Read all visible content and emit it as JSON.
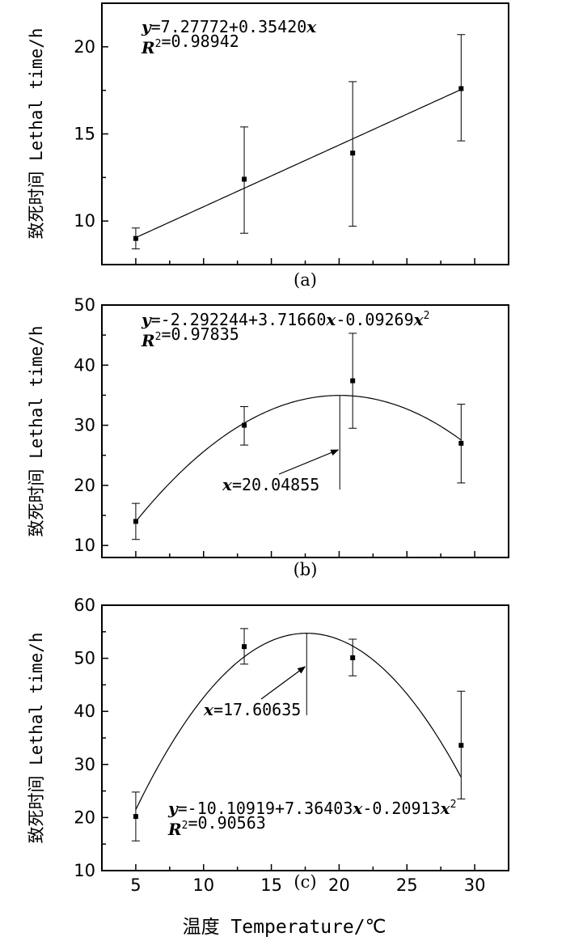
{
  "chart_data": [
    {
      "type": "scatter",
      "panel_label": "(a)",
      "ylabel": "致死时间 Lethal time/h",
      "xlim": [
        2.5,
        32.5
      ],
      "ylim": [
        7.5,
        22.5
      ],
      "yticks": [
        10,
        15,
        20
      ],
      "x": [
        5,
        13,
        21,
        29
      ],
      "y": [
        9.0,
        12.4,
        13.9,
        17.6
      ],
      "yerr_low": [
        8.4,
        9.3,
        9.7,
        14.6
      ],
      "yerr_high": [
        9.6,
        15.4,
        18.0,
        20.7
      ],
      "fit": {
        "kind": "linear",
        "coef": [
          7.27772,
          0.3542
        ],
        "x_range": [
          5,
          29
        ]
      },
      "equation": "y=7.27772+0.35420x",
      "r2": "R²=0.98942"
    },
    {
      "type": "scatter",
      "panel_label": "(b)",
      "ylabel": "致死时间 Lethal time/h",
      "xlim": [
        2.5,
        32.5
      ],
      "ylim": [
        8,
        50
      ],
      "yticks": [
        10,
        20,
        30,
        40,
        50
      ],
      "x": [
        5,
        13,
        21,
        29
      ],
      "y": [
        14.0,
        30.0,
        37.4,
        27.0
      ],
      "yerr_low": [
        11.0,
        26.7,
        29.5,
        20.4
      ],
      "yerr_high": [
        17.0,
        33.1,
        45.3,
        33.5
      ],
      "fit": {
        "kind": "quadratic",
        "coef": [
          -2.292244,
          3.7166,
          -0.09269
        ],
        "x_range": [
          5,
          29
        ]
      },
      "equation": "y=-2.292244+3.71660x-0.09269x²",
      "r2": "R²=0.97835",
      "vertex_annotation": "x=20.04855",
      "vertex_x": 20.04855
    },
    {
      "type": "scatter",
      "panel_label": "(c)",
      "ylabel": "致死时间 Lethal time/h",
      "xlabel": "温度 Temperature/℃",
      "xlim": [
        2.5,
        32.5
      ],
      "ylim": [
        10,
        60
      ],
      "xticks": [
        5,
        10,
        15,
        20,
        25,
        30
      ],
      "yticks": [
        10,
        20,
        30,
        40,
        50,
        60
      ],
      "x": [
        5,
        13,
        21,
        29
      ],
      "y": [
        20.2,
        52.2,
        50.1,
        33.6
      ],
      "yerr_low": [
        15.6,
        48.9,
        46.7,
        23.5
      ],
      "yerr_high": [
        24.8,
        55.6,
        53.6,
        43.8
      ],
      "fit": {
        "kind": "quadratic",
        "coef": [
          -10.10919,
          7.36403,
          -0.20913
        ],
        "x_range": [
          5,
          29
        ]
      },
      "equation": "y=-10.10919+7.36403x-0.20913x²",
      "r2": "R²=0.90563",
      "vertex_annotation": "x=17.60635",
      "vertex_x": 17.60635
    }
  ]
}
